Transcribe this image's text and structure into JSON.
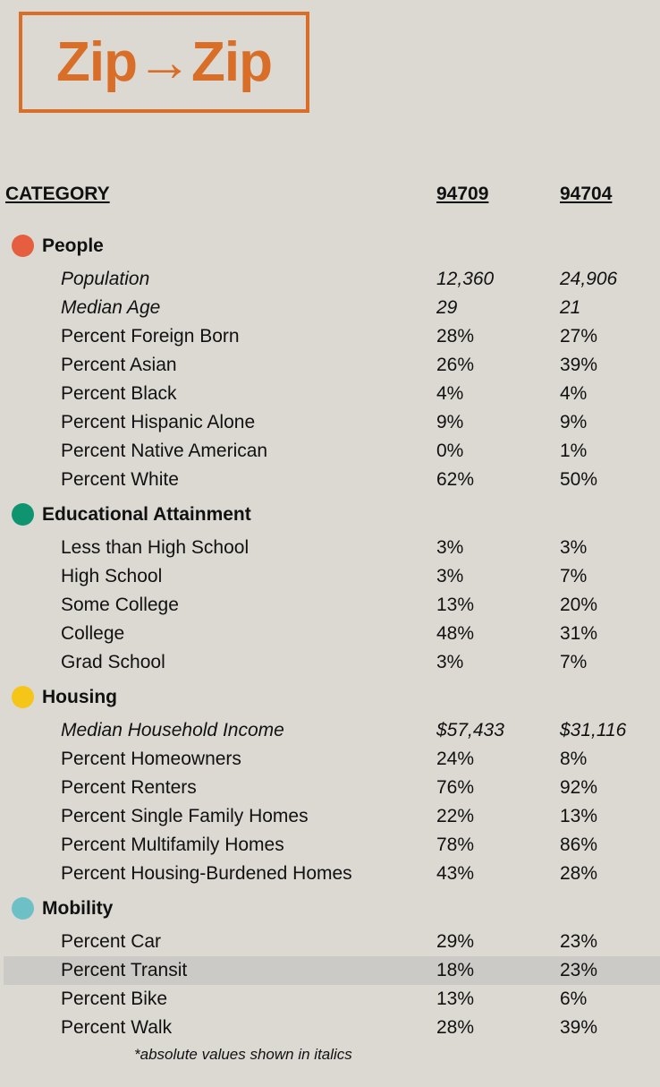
{
  "logo": {
    "text": "Zip→Zip",
    "color": "#d96e28"
  },
  "header": {
    "category": "CATEGORY",
    "zip1": "94709",
    "zip2": "94704"
  },
  "sections": {
    "people": {
      "title": "People",
      "color": "#e55e3f",
      "rows": {
        "population": {
          "label": "Population",
          "v1": "12,360",
          "v2": "24,906"
        },
        "median_age": {
          "label": "Median Age",
          "v1": "29",
          "v2": "21"
        },
        "foreign_born": {
          "label": "Percent Foreign Born",
          "v1": "28%",
          "v2": "27%"
        },
        "asian": {
          "label": "Percent Asian",
          "v1": "26%",
          "v2": "39%"
        },
        "black": {
          "label": "Percent Black",
          "v1": "4%",
          "v2": "4%"
        },
        "hispanic": {
          "label": "Percent Hispanic Alone",
          "v1": "9%",
          "v2": "9%"
        },
        "native": {
          "label": "Percent Native American",
          "v1": "0%",
          "v2": "1%"
        },
        "white": {
          "label": "Percent White",
          "v1": "62%",
          "v2": "50%"
        }
      }
    },
    "education": {
      "title": "Educational Attainment",
      "color": "#0f9470",
      "rows": {
        "less_hs": {
          "label": "Less than High School",
          "v1": "3%",
          "v2": "3%"
        },
        "hs": {
          "label": "High School",
          "v1": "3%",
          "v2": "7%"
        },
        "some_college": {
          "label": "Some College",
          "v1": "13%",
          "v2": "20%"
        },
        "college": {
          "label": "College",
          "v1": "48%",
          "v2": "31%"
        },
        "grad": {
          "label": "Grad School",
          "v1": "3%",
          "v2": "7%"
        }
      }
    },
    "housing": {
      "title": "Housing",
      "color": "#f5c518",
      "rows": {
        "income": {
          "label": "Median Household Income",
          "v1": "$57,433",
          "v2": "$31,116"
        },
        "homeowners": {
          "label": "Percent Homeowners",
          "v1": "24%",
          "v2": "8%"
        },
        "renters": {
          "label": "Percent Renters",
          "v1": "76%",
          "v2": "92%"
        },
        "single_family": {
          "label": "Percent Single Family Homes",
          "v1": "22%",
          "v2": "13%"
        },
        "multifamily": {
          "label": "Percent Multifamily Homes",
          "v1": "78%",
          "v2": "86%"
        },
        "burdened": {
          "label": "Percent Housing-Burdened Homes",
          "v1": "43%",
          "v2": "28%"
        }
      }
    },
    "mobility": {
      "title": "Mobility",
      "color": "#6dc0c6",
      "rows": {
        "car": {
          "label": "Percent Car",
          "v1": "29%",
          "v2": "23%"
        },
        "transit": {
          "label": "Percent Transit",
          "v1": "18%",
          "v2": "23%"
        },
        "bike": {
          "label": "Percent Bike",
          "v1": "13%",
          "v2": "6%"
        },
        "walk": {
          "label": "Percent Walk",
          "v1": "28%",
          "v2": "39%"
        }
      }
    }
  },
  "footnote": "*absolute values shown in italics",
  "highlight_color": "#cbcac7"
}
